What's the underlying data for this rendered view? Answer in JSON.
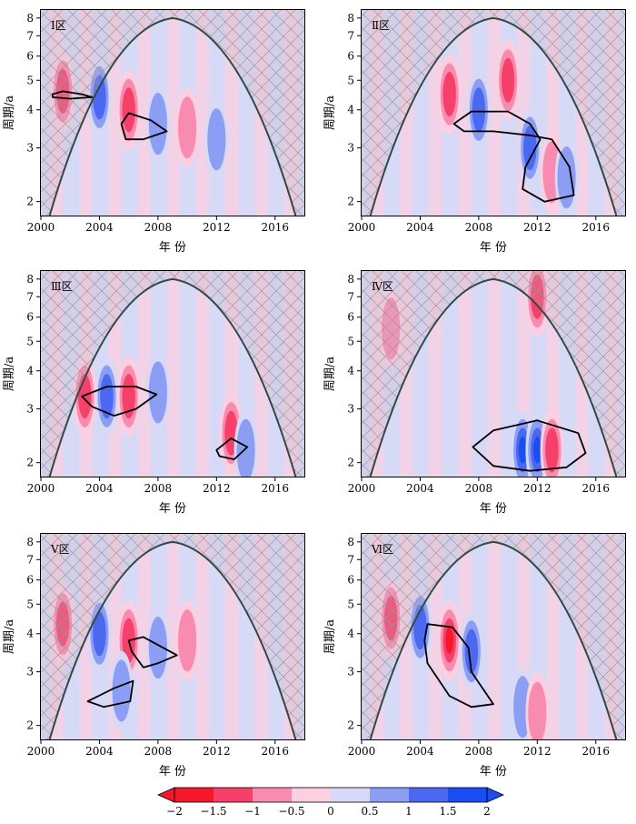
{
  "figure": {
    "panel_labels": [
      "Ⅰ区",
      "Ⅱ区",
      "Ⅲ区",
      "Ⅳ区",
      "Ⅴ区",
      "Ⅵ区"
    ],
    "xlabel": "年 份",
    "ylabel": "周期/a",
    "x_tick_labels": [
      "2000",
      "2004",
      "2008",
      "2012",
      "2016"
    ],
    "y_tick_labels": [
      "2",
      "3",
      "4",
      "5",
      "6",
      "7",
      "8"
    ],
    "colorbar_tick_labels": [
      "−2",
      "−1.5",
      "−1",
      "−0.5",
      "0",
      "0.5",
      "1",
      "1.5",
      "2"
    ]
  },
  "chart_data": [
    {
      "type": "heatmap",
      "title": "Ⅰ区",
      "xlabel": "年 份",
      "ylabel": "周期/a",
      "xlim": [
        2000,
        2018
      ],
      "ylim": [
        1.8,
        8.5
      ],
      "y_scale": "log",
      "cone_of_influence": {
        "apex": [
          2009,
          8.0
        ],
        "base": [
          [
            2000.6,
            1.8
          ],
          [
            2017.4,
            1.8
          ]
        ]
      },
      "features": [
        {
          "center": [
            2001.5,
            4.6
          ],
          "sign": "positive",
          "value": -1.5
        },
        {
          "center": [
            2004,
            4.4
          ],
          "sign": "negative",
          "value": 1.5
        },
        {
          "center": [
            2006,
            4.0
          ],
          "sign": "positive",
          "value": -1.5
        },
        {
          "center": [
            2008,
            3.6
          ],
          "sign": "negative",
          "value": 1.0
        },
        {
          "center": [
            2010,
            3.5
          ],
          "sign": "positive",
          "value": -1.0
        },
        {
          "center": [
            2012,
            3.2
          ],
          "sign": "negative",
          "value": 1.0
        }
      ],
      "significance_contours": [
        [
          [
            2000.8,
            4.5
          ],
          [
            2001.5,
            4.6
          ],
          [
            2002.8,
            4.5
          ],
          [
            2003.5,
            4.4
          ],
          [
            2002,
            4.35
          ],
          [
            2000.8,
            4.4
          ]
        ],
        [
          [
            2005.5,
            3.6
          ],
          [
            2006,
            3.9
          ],
          [
            2007.5,
            3.7
          ],
          [
            2008.6,
            3.4
          ],
          [
            2007,
            3.2
          ],
          [
            2005.8,
            3.2
          ]
        ]
      ]
    },
    {
      "type": "heatmap",
      "title": "Ⅱ区",
      "xlabel": "年 份",
      "ylabel": "周期/a",
      "xlim": [
        2000,
        2018
      ],
      "ylim": [
        1.8,
        8.5
      ],
      "y_scale": "log",
      "cone_of_influence": {
        "apex": [
          2009,
          8.0
        ],
        "base": [
          [
            2000.6,
            1.8
          ],
          [
            2017.4,
            1.8
          ]
        ]
      },
      "features": [
        {
          "center": [
            2006,
            4.5
          ],
          "sign": "positive",
          "value": -1.5
        },
        {
          "center": [
            2008,
            4.0
          ],
          "sign": "negative",
          "value": 1.5
        },
        {
          "center": [
            2010,
            5.0
          ],
          "sign": "positive",
          "value": -1.5
        },
        {
          "center": [
            2011.5,
            3.0
          ],
          "sign": "negative",
          "value": 1.5
        },
        {
          "center": [
            2013,
            2.5
          ],
          "sign": "positive",
          "value": -1.0
        },
        {
          "center": [
            2014,
            2.4
          ],
          "sign": "negative",
          "value": 1.0
        }
      ],
      "significance_contours": [
        [
          [
            2006.3,
            3.6
          ],
          [
            2007.5,
            3.95
          ],
          [
            2010,
            3.95
          ],
          [
            2011.5,
            3.6
          ],
          [
            2012.2,
            3.2
          ],
          [
            2011.2,
            2.6
          ],
          [
            2011,
            2.2
          ],
          [
            2012.5,
            2.0
          ],
          [
            2014.5,
            2.1
          ],
          [
            2014.2,
            2.6
          ],
          [
            2013,
            3.2
          ],
          [
            2011.5,
            3.3
          ],
          [
            2009,
            3.4
          ],
          [
            2007,
            3.4
          ]
        ]
      ]
    },
    {
      "type": "heatmap",
      "title": "Ⅲ区",
      "xlabel": "年 份",
      "ylabel": "周期/a",
      "xlim": [
        2000,
        2018
      ],
      "ylim": [
        1.8,
        8.5
      ],
      "y_scale": "log",
      "cone_of_influence": {
        "apex": [
          2009,
          8.0
        ],
        "base": [
          [
            2000.6,
            1.8
          ],
          [
            2017.4,
            1.8
          ]
        ]
      },
      "features": [
        {
          "center": [
            2003,
            3.3
          ],
          "sign": "positive",
          "value": -1.5
        },
        {
          "center": [
            2004.5,
            3.3
          ],
          "sign": "negative",
          "value": 1.5
        },
        {
          "center": [
            2006,
            3.3
          ],
          "sign": "positive",
          "value": -1.5
        },
        {
          "center": [
            2008,
            3.4
          ],
          "sign": "negative",
          "value": 1.0
        },
        {
          "center": [
            2013,
            2.5
          ],
          "sign": "positive",
          "value": -1.5
        },
        {
          "center": [
            2014,
            2.2
          ],
          "sign": "negative",
          "value": 1.0
        }
      ],
      "significance_contours": [
        [
          [
            2002.8,
            3.3
          ],
          [
            2004.5,
            3.55
          ],
          [
            2006.5,
            3.55
          ],
          [
            2007.9,
            3.35
          ],
          [
            2006.5,
            3.0
          ],
          [
            2005,
            2.85
          ],
          [
            2003.5,
            3.05
          ]
        ],
        [
          [
            2012,
            2.2
          ],
          [
            2013,
            2.4
          ],
          [
            2014.1,
            2.25
          ],
          [
            2013.2,
            2.05
          ],
          [
            2012.2,
            2.1
          ]
        ]
      ]
    },
    {
      "type": "heatmap",
      "title": "Ⅳ区",
      "xlabel": "年 份",
      "ylabel": "周期/a",
      "xlim": [
        2000,
        2018
      ],
      "ylim": [
        1.8,
        8.5
      ],
      "y_scale": "log",
      "cone_of_influence": {
        "apex": [
          2009,
          8.0
        ],
        "base": [
          [
            2000.6,
            1.8
          ],
          [
            2017.4,
            1.8
          ]
        ]
      },
      "features": [
        {
          "center": [
            2002,
            5.5
          ],
          "sign": "positive",
          "value": -1.0
        },
        {
          "center": [
            2011,
            2.2
          ],
          "sign": "negative",
          "value": 2.0
        },
        {
          "center": [
            2012,
            2.2
          ],
          "sign": "negative",
          "value": 2.0
        },
        {
          "center": [
            2013,
            2.2
          ],
          "sign": "positive",
          "value": -1.5
        },
        {
          "center": [
            2012,
            7.0
          ],
          "sign": "positive",
          "value": -1.5
        }
      ],
      "significance_contours": [
        [
          [
            2007.6,
            2.25
          ],
          [
            2009,
            2.55
          ],
          [
            2012,
            2.75
          ],
          [
            2014.8,
            2.5
          ],
          [
            2015.3,
            2.15
          ],
          [
            2014,
            1.93
          ],
          [
            2011.5,
            1.88
          ],
          [
            2009,
            1.95
          ]
        ]
      ]
    },
    {
      "type": "heatmap",
      "title": "Ⅴ区",
      "xlabel": "年 份",
      "ylabel": "周期/a",
      "xlim": [
        2000,
        2018
      ],
      "ylim": [
        1.8,
        8.5
      ],
      "y_scale": "log",
      "cone_of_influence": {
        "apex": [
          2009,
          8.0
        ],
        "base": [
          [
            2000.6,
            1.8
          ],
          [
            2017.4,
            1.8
          ]
        ]
      },
      "features": [
        {
          "center": [
            2001.5,
            4.3
          ],
          "sign": "positive",
          "value": -1.5
        },
        {
          "center": [
            2004,
            4.0
          ],
          "sign": "negative",
          "value": 1.5
        },
        {
          "center": [
            2006,
            3.8
          ],
          "sign": "positive",
          "value": -1.5
        },
        {
          "center": [
            2005.5,
            2.6
          ],
          "sign": "negative",
          "value": 1.0
        },
        {
          "center": [
            2008,
            3.6
          ],
          "sign": "negative",
          "value": 1.0
        },
        {
          "center": [
            2010,
            3.8
          ],
          "sign": "positive",
          "value": -1.0
        }
      ],
      "significance_contours": [
        [
          [
            2006,
            3.8
          ],
          [
            2007,
            3.9
          ],
          [
            2009.3,
            3.4
          ],
          [
            2008,
            3.2
          ],
          [
            2007,
            3.1
          ],
          [
            2006.2,
            3.5
          ]
        ],
        [
          [
            2003.2,
            2.4
          ],
          [
            2005,
            2.65
          ],
          [
            2006.3,
            2.8
          ],
          [
            2006.1,
            2.4
          ],
          [
            2004.3,
            2.3
          ]
        ]
      ]
    },
    {
      "type": "heatmap",
      "title": "Ⅵ区",
      "xlabel": "年 份",
      "ylabel": "周期/a",
      "xlim": [
        2000,
        2018
      ],
      "ylim": [
        1.8,
        8.5
      ],
      "y_scale": "log",
      "cone_of_influence": {
        "apex": [
          2009,
          8.0
        ],
        "base": [
          [
            2000.6,
            1.8
          ],
          [
            2017.4,
            1.8
          ]
        ]
      },
      "features": [
        {
          "center": [
            2002,
            4.5
          ],
          "sign": "positive",
          "value": -1.5
        },
        {
          "center": [
            2004,
            4.2
          ],
          "sign": "negative",
          "value": 1.5
        },
        {
          "center": [
            2006,
            3.8
          ],
          "sign": "positive",
          "value": -2.0
        },
        {
          "center": [
            2007.5,
            3.5
          ],
          "sign": "negative",
          "value": 1.5
        },
        {
          "center": [
            2011,
            2.3
          ],
          "sign": "negative",
          "value": 1.0
        },
        {
          "center": [
            2012,
            2.2
          ],
          "sign": "positive",
          "value": -1.0
        }
      ],
      "significance_contours": [
        [
          [
            2004.5,
            4.3
          ],
          [
            2006.2,
            4.2
          ],
          [
            2007.3,
            3.6
          ],
          [
            2007.5,
            3.0
          ],
          [
            2009,
            2.35
          ],
          [
            2007.5,
            2.3
          ],
          [
            2006,
            2.5
          ],
          [
            2004.5,
            3.2
          ],
          [
            2004.3,
            3.8
          ]
        ]
      ]
    }
  ],
  "colorbar": {
    "type": "colorbar",
    "extend": "both",
    "values": [
      -2,
      -1.5,
      -1,
      -0.5,
      0,
      0.5,
      1,
      1.5,
      2
    ],
    "colors": [
      "#f5182d",
      "#f5416a",
      "#f88cb0",
      "#fdcfe0",
      "#d7daf6",
      "#8c9ef4",
      "#4a68f0",
      "#1a4ef4"
    ]
  },
  "colors": {
    "negative_2": "#f5182d",
    "negative_15": "#f5416a",
    "negative_1": "#f88cb0",
    "negative_05": "#fdcfe0",
    "positive_05": "#d7daf6",
    "positive_1": "#8c9ef4",
    "positive_15": "#4a68f0",
    "positive_2": "#1a4ef4",
    "contour": "#000000",
    "cone": "#2f4a45"
  }
}
